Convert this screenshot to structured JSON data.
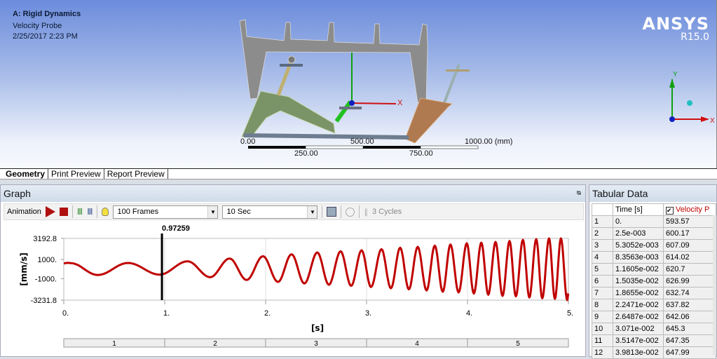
{
  "viewport": {
    "title": "A: Rigid Dynamics",
    "subtitle": "Velocity Probe",
    "timestamp": "2/25/2017 2:23 PM",
    "brand": "ANSYS",
    "version": "R15.0",
    "scale": {
      "labels_top": [
        "0.00",
        "500.00",
        "1000.00 (mm)"
      ],
      "labels_bottom": [
        "250.00",
        "750.00"
      ]
    },
    "triad": {
      "x": "X",
      "y": "Y"
    }
  },
  "tabs": [
    {
      "label": "Geometry",
      "active": true
    },
    {
      "label": "Print Preview"
    },
    {
      "label": "Report Preview"
    }
  ],
  "graph": {
    "title": "Graph",
    "pin": "ф",
    "toolbar": {
      "animation": "Animation",
      "frames": "100 Frames",
      "duration": "10 Sec",
      "cycles": "3 Cycles"
    }
  },
  "chart_data": {
    "type": "line",
    "xlabel": "[s]",
    "ylabel": "[mm/s]",
    "xlim": [
      0,
      5
    ],
    "ylim": [
      -3231.8,
      3192.8
    ],
    "xticks": [
      "0.",
      "1.",
      "2.",
      "3.",
      "4.",
      "5."
    ],
    "yticks": [
      "3192.8",
      "1000.",
      "-1000.",
      "-3231.8"
    ],
    "cursor": {
      "x": 0.97259,
      "label": "0.97259"
    },
    "steps": [
      "1",
      "2",
      "3",
      "4",
      "5"
    ],
    "color": "#c00000",
    "points": [
      [
        0,
        593.57
      ],
      [
        0.04,
        648
      ],
      [
        0.07,
        620
      ],
      [
        0.336,
        -620
      ],
      [
        0.637,
        640
      ],
      [
        0.949,
        -580
      ],
      [
        1.227,
        810
      ],
      [
        1.451,
        -850
      ],
      [
        1.643,
        1100
      ],
      [
        1.812,
        -1140
      ],
      [
        1.974,
        1340
      ],
      [
        2.123,
        -1340
      ],
      [
        2.257,
        1540
      ],
      [
        2.384,
        -1500
      ],
      [
        2.512,
        1730
      ],
      [
        2.627,
        -1630
      ],
      [
        2.743,
        1850
      ],
      [
        2.847,
        -1750
      ],
      [
        2.951,
        1950
      ],
      [
        3.044,
        -1870
      ],
      [
        3.148,
        2070
      ],
      [
        3.241,
        -2000
      ],
      [
        3.333,
        2220
      ],
      [
        3.419,
        -2110
      ],
      [
        3.507,
        2310
      ],
      [
        3.595,
        -2230
      ],
      [
        3.676,
        2440
      ],
      [
        3.755,
        -2360
      ],
      [
        3.831,
        2560
      ],
      [
        3.912,
        -2430
      ],
      [
        3.993,
        2680
      ],
      [
        4.063,
        -2550
      ],
      [
        4.137,
        2750
      ],
      [
        4.206,
        -2670
      ],
      [
        4.278,
        2820
      ],
      [
        4.347,
        -2790
      ],
      [
        4.417,
        2920
      ],
      [
        4.479,
        -2840
      ],
      [
        4.549,
        3040
      ],
      [
        4.613,
        -2960
      ],
      [
        4.681,
        3110
      ],
      [
        4.741,
        -3040
      ],
      [
        4.808,
        3190
      ],
      [
        4.866,
        -3090
      ],
      [
        4.926,
        3192.8
      ],
      [
        4.988,
        -3231.8
      ],
      [
        5.0,
        -2550
      ]
    ]
  },
  "tabular": {
    "title": "Tabular Data",
    "headers": [
      "",
      "Time [s]",
      "Velocity P"
    ],
    "rows": [
      [
        "1",
        "0.",
        "593.57"
      ],
      [
        "2",
        "2.5e-003",
        "600.17"
      ],
      [
        "3",
        "5.3052e-003",
        "607.09"
      ],
      [
        "4",
        "8.3563e-003",
        "614.02"
      ],
      [
        "5",
        "1.1605e-002",
        "620.7"
      ],
      [
        "6",
        "1.5035e-002",
        "626.99"
      ],
      [
        "7",
        "1.8655e-002",
        "632.74"
      ],
      [
        "8",
        "2.2471e-002",
        "637.82"
      ],
      [
        "9",
        "2.6487e-002",
        "642.06"
      ],
      [
        "10",
        "3.071e-002",
        "645.3"
      ],
      [
        "11",
        "3.5147e-002",
        "647.35"
      ],
      [
        "12",
        "3.9813e-002",
        "647.99"
      ]
    ]
  }
}
